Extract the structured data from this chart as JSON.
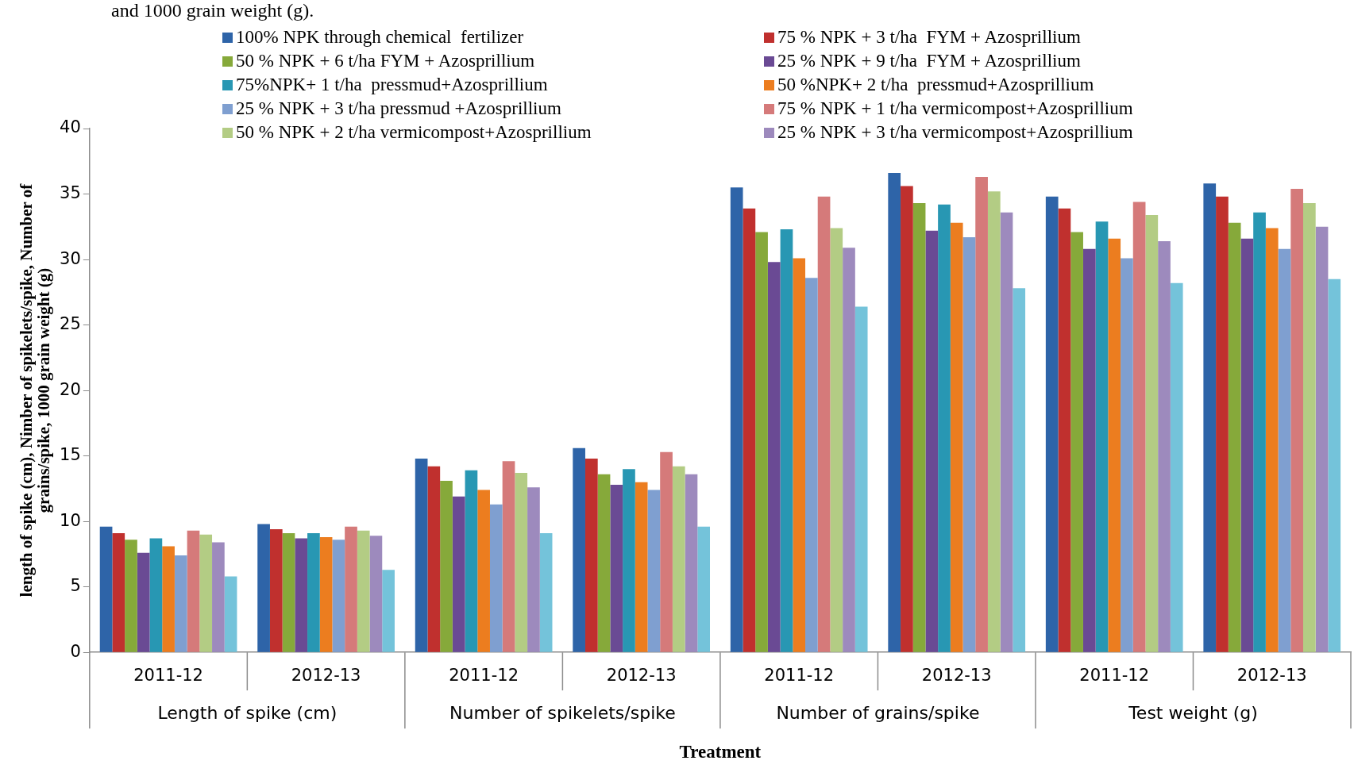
{
  "chart_data": {
    "type": "bar",
    "ylabel": "length of spike (cm), Nimber of spikelets/spike, Number of\ngrains/spike, 1000 grain weight (g)",
    "xlabel": "Treatment",
    "categories": [
      "2011-12",
      "2012-13",
      "2011-12",
      "2012-13",
      "2011-12",
      "2012-13",
      "2011-12",
      "2012-13"
    ],
    "annotations": [
      "and 1000 grain weight (g).",
      "Length of spike (cm)",
      "Number of spikelets/spike",
      "Number of grains/spike",
      "Test weight (g)"
    ],
    "ylim": [
      0,
      40
    ],
    "yticks": [
      0,
      5,
      10,
      15,
      20,
      25,
      30,
      35,
      40
    ],
    "legend": "top",
    "series": [
      {
        "name": "100% NPK through chemical  fertilizer",
        "color": "#2e64a8",
        "values": [
          9.6,
          9.8,
          14.8,
          15.6,
          35.5,
          36.6,
          34.8,
          35.8
        ]
      },
      {
        "name": "75 % NPK + 3 t/ha  FYM + Azosprillium",
        "color": "#c0302e",
        "values": [
          9.1,
          9.4,
          14.2,
          14.8,
          33.9,
          35.6,
          33.9,
          34.8
        ]
      },
      {
        "name": "50 % NPK + 6 t/ha FYM + Azosprillium",
        "color": "#86a93a",
        "values": [
          8.6,
          9.1,
          13.1,
          13.6,
          32.1,
          34.3,
          32.1,
          32.8
        ]
      },
      {
        "name": "25 % NPK + 9 t/ha  FYM + Azosprillium",
        "color": "#6a4a94",
        "values": [
          7.6,
          8.7,
          11.9,
          12.8,
          29.8,
          32.2,
          30.8,
          31.6
        ]
      },
      {
        "name": "75%NPK+ 1 t/ha  pressmud+Azosprillium",
        "color": "#2897b3",
        "values": [
          8.7,
          9.1,
          13.9,
          14.0,
          32.3,
          34.2,
          32.9,
          33.6
        ]
      },
      {
        "name": "50 %NPK+ 2 t/ha  pressmud+Azosprillium",
        "color": "#ec7d1f",
        "values": [
          8.1,
          8.8,
          12.4,
          13.0,
          30.1,
          32.8,
          31.6,
          32.4
        ]
      },
      {
        "name": "25 % NPK + 3 t/ha pressmud +Azosprillium",
        "color": "#7f9fd0",
        "values": [
          7.4,
          8.6,
          11.3,
          12.4,
          28.6,
          31.7,
          30.1,
          30.8
        ]
      },
      {
        "name": "75 % NPK + 1 t/ha vermicompost+Azosprillium",
        "color": "#d57a7a",
        "values": [
          9.3,
          9.6,
          14.6,
          15.3,
          34.8,
          36.3,
          34.4,
          35.4
        ]
      },
      {
        "name": "50 % NPK + 2 t/ha vermicompost+Azosprillium",
        "color": "#b3cc84",
        "values": [
          9.0,
          9.3,
          13.7,
          14.2,
          32.4,
          35.2,
          33.4,
          34.3
        ]
      },
      {
        "name": "25 % NPK + 3 t/ha vermicompost+Azosprillium",
        "color": "#9d8abd",
        "values": [
          8.4,
          8.9,
          12.6,
          13.6,
          30.9,
          33.6,
          31.4,
          32.5
        ]
      },
      {
        "color": "#74c3da",
        "values": [
          5.8,
          6.3,
          9.1,
          9.6,
          26.4,
          27.8,
          28.2,
          28.5
        ]
      }
    ]
  }
}
